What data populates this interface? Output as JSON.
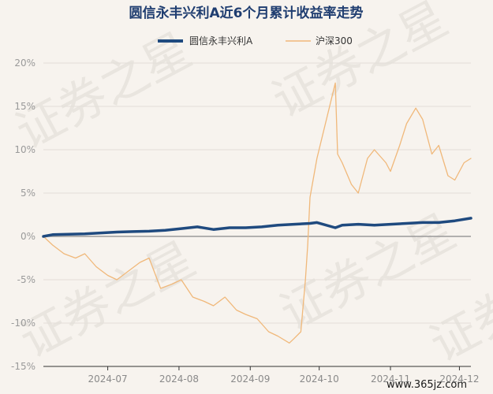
{
  "chart_data": {
    "type": "line",
    "title": "圆信永丰兴利A近6个月累计收益率走势",
    "ylim": [
      -15,
      20
    ],
    "yticks": [
      20,
      15,
      10,
      5,
      0,
      -5,
      -10,
      -15
    ],
    "ytick_labels": [
      "20%",
      "15%",
      "10%",
      "5%",
      "0%",
      "-5%",
      "-10%",
      "-15%"
    ],
    "xlim": [
      "2024-06-03",
      "2024-12-06"
    ],
    "xticks": [
      "2024-07-01",
      "2024-08-01",
      "2024-09-01",
      "2024-10-01",
      "2024-11-01",
      "2024-12-01"
    ],
    "xtick_labels": [
      "2024-07",
      "2024-08",
      "2024-09",
      "2024-10",
      "2024-11",
      "2024-12"
    ],
    "legend_position": "top-center",
    "grid": "horizontal",
    "series": [
      {
        "name": "圆信永丰兴利A",
        "color": "#1f4a7f",
        "x": [
          "2024-06-03",
          "2024-06-07",
          "2024-06-14",
          "2024-06-21",
          "2024-06-28",
          "2024-07-05",
          "2024-07-12",
          "2024-07-19",
          "2024-07-26",
          "2024-08-02",
          "2024-08-09",
          "2024-08-16",
          "2024-08-23",
          "2024-08-30",
          "2024-09-06",
          "2024-09-13",
          "2024-09-20",
          "2024-09-27",
          "2024-09-30",
          "2024-10-08",
          "2024-10-11",
          "2024-10-18",
          "2024-10-25",
          "2024-11-01",
          "2024-11-08",
          "2024-11-15",
          "2024-11-22",
          "2024-11-29",
          "2024-12-06"
        ],
        "values": [
          0.0,
          0.2,
          0.25,
          0.3,
          0.4,
          0.5,
          0.55,
          0.6,
          0.7,
          0.9,
          1.1,
          0.8,
          1.0,
          1.0,
          1.1,
          1.3,
          1.4,
          1.5,
          1.6,
          1.0,
          1.3,
          1.4,
          1.3,
          1.4,
          1.5,
          1.6,
          1.6,
          1.8,
          2.1
        ]
      },
      {
        "name": "沪深300",
        "color": "#f0b87a",
        "x": [
          "2024-06-03",
          "2024-06-07",
          "2024-06-12",
          "2024-06-17",
          "2024-06-21",
          "2024-06-26",
          "2024-07-01",
          "2024-07-05",
          "2024-07-10",
          "2024-07-15",
          "2024-07-19",
          "2024-07-24",
          "2024-07-29",
          "2024-08-02",
          "2024-08-07",
          "2024-08-12",
          "2024-08-16",
          "2024-08-21",
          "2024-08-26",
          "2024-08-30",
          "2024-09-04",
          "2024-09-09",
          "2024-09-13",
          "2024-09-18",
          "2024-09-20",
          "2024-09-23",
          "2024-09-24",
          "2024-09-25",
          "2024-09-26",
          "2024-09-27",
          "2024-09-30",
          "2024-10-08",
          "2024-10-09",
          "2024-10-11",
          "2024-10-15",
          "2024-10-18",
          "2024-10-22",
          "2024-10-25",
          "2024-10-30",
          "2024-11-01",
          "2024-11-05",
          "2024-11-08",
          "2024-11-12",
          "2024-11-15",
          "2024-11-19",
          "2024-11-22",
          "2024-11-26",
          "2024-11-29",
          "2024-12-03",
          "2024-12-06"
        ],
        "values": [
          0.0,
          -1.0,
          -2.0,
          -2.5,
          -2.0,
          -3.5,
          -4.5,
          -5.0,
          -4.0,
          -3.0,
          -2.5,
          -6.0,
          -5.5,
          -5.0,
          -7.0,
          -7.5,
          -8.0,
          -7.0,
          -8.5,
          -9.0,
          -9.5,
          -11.0,
          -11.5,
          -12.3,
          -11.8,
          -11.0,
          -8.0,
          -5.0,
          -1.0,
          4.5,
          9.0,
          17.7,
          9.5,
          8.5,
          6.0,
          5.0,
          9.0,
          10.0,
          8.5,
          7.5,
          10.5,
          13.0,
          14.8,
          13.5,
          9.5,
          10.5,
          7.0,
          6.5,
          8.5,
          9.0
        ]
      }
    ]
  },
  "watermark": {
    "text": "证券之星",
    "site": "www.365jz.com"
  }
}
